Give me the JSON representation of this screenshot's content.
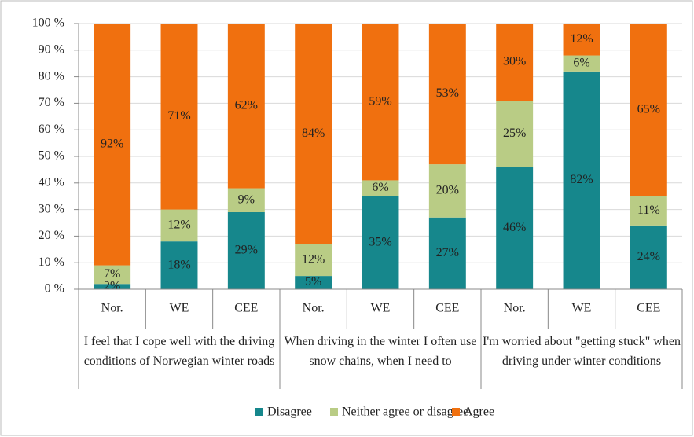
{
  "chart_data": {
    "type": "stacked_bar",
    "categories": [
      "Nor.",
      "WE",
      "CEE",
      "Nor.",
      "WE",
      "CEE",
      "Nor.",
      "WE",
      "CEE"
    ],
    "groups": [
      "I feel that I cope well with the driving conditions of Norwegian winter roads",
      "When driving in the winter I often use snow chains, when I need to",
      "I'm worried about \"getting stuck\" when driving under winter conditions"
    ],
    "series": [
      {
        "name": "Disagree",
        "color": "#16878c",
        "values": [
          2,
          18,
          29,
          5,
          35,
          27,
          46,
          82,
          24
        ],
        "value_labels": [
          "2%",
          "18%",
          "29%",
          "5%",
          "35%",
          "27%",
          "46%",
          "82%",
          "24%"
        ]
      },
      {
        "name": "Neither agree or disagree",
        "color": "#b9cc85",
        "values": [
          7,
          12,
          9,
          12,
          6,
          20,
          25,
          6,
          11
        ],
        "value_labels": [
          "7%",
          "12%",
          "9%",
          "12%",
          "6%",
          "20%",
          "25%",
          "6%",
          "11%"
        ]
      },
      {
        "name": "Agree",
        "color": "#f0700f",
        "values": [
          92,
          71,
          62,
          84,
          59,
          53,
          30,
          12,
          65
        ],
        "value_labels": [
          "92%",
          "71%",
          "62%",
          "84%",
          "59%",
          "53%",
          "30%",
          "12%",
          "65%"
        ]
      }
    ],
    "ylim": [
      0,
      100
    ],
    "yticks": [
      {
        "value": 0,
        "label": "0 %"
      },
      {
        "value": 10,
        "label": "10 %"
      },
      {
        "value": 20,
        "label": "20 %"
      },
      {
        "value": 30,
        "label": "30 %"
      },
      {
        "value": 40,
        "label": "40 %"
      },
      {
        "value": 50,
        "label": "50 %"
      },
      {
        "value": 60,
        "label": "60 %"
      },
      {
        "value": 70,
        "label": "70 %"
      },
      {
        "value": 80,
        "label": "80 %"
      },
      {
        "value": 90,
        "label": "90 %"
      },
      {
        "value": 100,
        "label": "100 %"
      }
    ],
    "grid": true,
    "legend": "bottom"
  }
}
